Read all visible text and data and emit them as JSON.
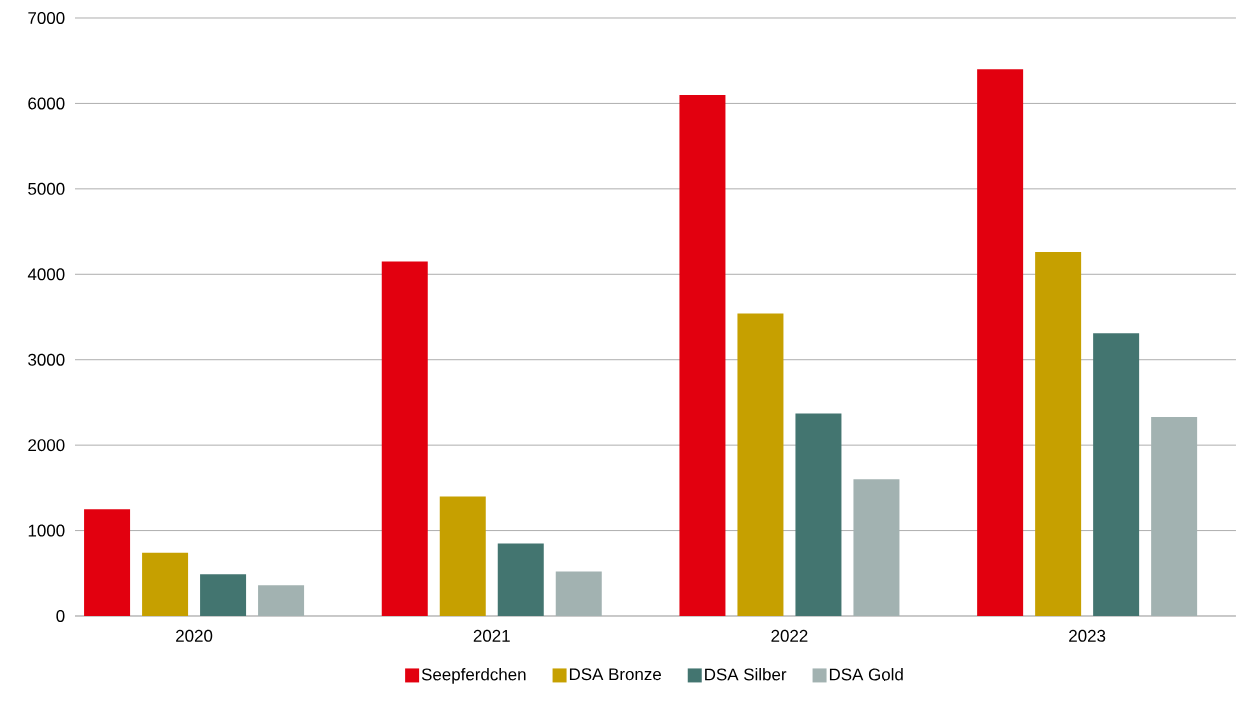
{
  "chart_data": {
    "type": "bar",
    "categories": [
      "2020",
      "2021",
      "2022",
      "2023"
    ],
    "series": [
      {
        "name": "Seepferdchen",
        "color": "#e2000f",
        "values": [
          1250,
          4150,
          6100,
          6400
        ]
      },
      {
        "name": "DSA Bronze",
        "color": "#c6a000",
        "values": [
          740,
          1400,
          3540,
          4260
        ]
      },
      {
        "name": "DSA Silber",
        "color": "#437570",
        "values": [
          490,
          850,
          2370,
          3310
        ]
      },
      {
        "name": "DSA Gold",
        "color": "#a2b2b1",
        "values": [
          360,
          520,
          1600,
          2330
        ]
      }
    ],
    "ylim": [
      0,
      7000
    ],
    "yticks": [
      0,
      1000,
      2000,
      3000,
      4000,
      5000,
      6000,
      7000
    ],
    "grid": "y",
    "legend": "bottom"
  }
}
